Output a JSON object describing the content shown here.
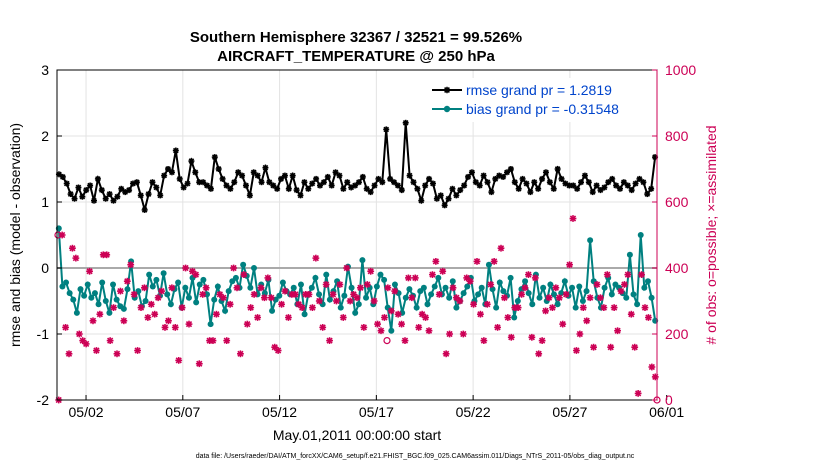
{
  "chart_data": {
    "type": "line",
    "title": "Southern Hemisphere 32367 / 32521 = 99.526%",
    "subtitle": "AIRCRAFT_TEMPERATURE @ 250 hPa",
    "xlabel": "May.01,2011 00:00:00 start",
    "ylabel": "rmse and bias (model - observation)",
    "ylabel_right": "# of obs: o=possible; ×=assimilated",
    "footer": "data file: /Users/raeder/DAI/ATM_forcXX/CAM6_setup/f.e21.FHIST_BGC.f09_025.CAM6assim.011/Diags_NTrS_2011-05/obs_diag_output.nc",
    "xlim": [
      0.5,
      31.5
    ],
    "ylim": [
      -2,
      3
    ],
    "ylim_right": [
      0,
      1000
    ],
    "x_ticks": [
      2,
      7,
      12,
      17,
      22,
      27,
      32
    ],
    "x_tick_labels": [
      "05/02",
      "05/07",
      "05/12",
      "05/17",
      "05/22",
      "05/27",
      "06/01"
    ],
    "y_ticks": [
      -2,
      -1,
      0,
      1,
      2,
      3
    ],
    "y_ticks_right": [
      0,
      200,
      400,
      600,
      800,
      1000
    ],
    "grid": true,
    "legend_position": "top-right",
    "series": [
      {
        "name": "rmse grand pr = 1.2819",
        "color": "#000000",
        "marker": "asterisk",
        "axis": "left",
        "values": [
          1.42,
          1.38,
          1.28,
          1.12,
          1.05,
          1.22,
          1.08,
          1.18,
          1.25,
          1.02,
          1.35,
          1.18,
          1.05,
          1.12,
          1.02,
          1.08,
          1.2,
          1.15,
          1.18,
          1.28,
          1.3,
          1.1,
          0.88,
          1.12,
          1.3,
          1.22,
          1.1,
          1.4,
          1.5,
          1.45,
          1.78,
          1.35,
          1.22,
          1.28,
          1.62,
          1.45,
          1.3,
          1.3,
          1.25,
          1.2,
          1.68,
          1.5,
          1.35,
          1.25,
          1.2,
          1.3,
          1.45,
          1.4,
          1.25,
          1.1,
          1.45,
          1.4,
          1.3,
          1.52,
          1.3,
          1.25,
          1.2,
          1.35,
          1.4,
          1.2,
          1.4,
          1.18,
          1.1,
          1.3,
          1.2,
          1.28,
          1.35,
          1.25,
          1.3,
          1.38,
          1.25,
          1.45,
          1.4,
          1.2,
          1.3,
          1.22,
          1.25,
          1.3,
          1.38,
          1.2,
          1.15,
          1.25,
          1.35,
          1.3,
          2.1,
          1.35,
          1.3,
          1.25,
          1.18,
          2.2,
          1.4,
          1.3,
          1.2,
          1.02,
          1.25,
          1.35,
          1.28,
          1.05,
          1.1,
          0.95,
          1.05,
          1.2,
          1.1,
          1.18,
          1.25,
          1.38,
          1.45,
          1.3,
          1.25,
          1.4,
          1.3,
          1.15,
          1.35,
          1.4,
          1.38,
          1.45,
          1.5,
          1.3,
          1.2,
          1.35,
          1.28,
          1.15,
          1.3,
          1.2,
          1.35,
          1.45,
          1.3,
          1.2,
          1.5,
          1.35,
          1.28,
          1.25,
          1.25,
          1.2,
          1.3,
          1.4,
          1.3,
          1.15,
          1.25,
          1.18,
          1.22,
          1.3,
          1.35,
          1.25,
          1.2,
          1.3,
          1.25,
          1.18,
          1.28,
          1.35,
          1.3,
          1.12,
          1.2,
          1.68
        ]
      },
      {
        "name": "bias grand pr = -0.31548",
        "color": "#008080",
        "marker": "dot",
        "axis": "left",
        "values": [
          0.6,
          -0.28,
          -0.22,
          -0.38,
          -0.48,
          -0.68,
          -0.32,
          -0.42,
          -0.25,
          -0.45,
          -0.38,
          -0.55,
          -0.22,
          -0.5,
          -0.68,
          -0.25,
          -0.48,
          -0.58,
          -0.62,
          -0.32,
          0.1,
          -0.45,
          -0.35,
          -0.58,
          -0.5,
          -0.1,
          -0.28,
          -0.18,
          -0.42,
          -0.08,
          -0.4,
          -0.55,
          -0.32,
          -0.22,
          -0.6,
          -0.3,
          -0.45,
          -0.15,
          -0.52,
          -0.25,
          -0.18,
          -0.4,
          -0.85,
          -0.48,
          -0.28,
          -0.5,
          -0.65,
          -0.35,
          -0.2,
          -0.15,
          -0.3,
          0.05,
          -0.12,
          -0.3,
          0.0,
          -0.4,
          -0.25,
          -0.38,
          -0.18,
          -0.65,
          -0.48,
          -0.42,
          -0.22,
          -0.35,
          -0.4,
          -0.3,
          -0.55,
          -0.25,
          -0.7,
          -0.4,
          -0.3,
          -0.15,
          -0.4,
          -0.55,
          -0.1,
          -0.48,
          -0.35,
          -0.2,
          -0.6,
          -0.42,
          0.02,
          -0.3,
          -0.68,
          -0.55,
          0.12,
          -0.45,
          -0.3,
          -0.55,
          -0.28,
          -0.1,
          -0.18,
          -0.6,
          -0.95,
          -0.25,
          -0.38,
          -0.68,
          -0.45,
          -0.32,
          -0.42,
          -0.6,
          -0.35,
          -0.3,
          -0.55,
          -0.4,
          -0.28,
          -0.15,
          -0.4,
          -0.3,
          -0.45,
          -0.2,
          -0.6,
          -0.5,
          -0.38,
          -0.28,
          -0.15,
          -0.5,
          -0.4,
          -0.3,
          -0.55,
          0.05,
          -0.32,
          -0.6,
          -0.22,
          -0.35,
          -0.42,
          -0.15,
          -0.75,
          -0.5,
          -0.32,
          -0.2,
          -0.38,
          -0.55,
          -0.1,
          -0.45,
          -0.3,
          -0.5,
          -0.25,
          -0.4,
          -0.55,
          -0.38,
          -0.2,
          -0.42,
          -0.3,
          -0.6,
          -0.28,
          -0.5,
          -0.35,
          0.42,
          -0.2,
          -0.45,
          -0.6,
          -0.3,
          -0.15,
          -0.4,
          -0.25,
          -0.3,
          -0.38,
          -0.45,
          0.2,
          -0.4,
          -0.55,
          0.5,
          -0.3,
          -0.2,
          -0.45,
          -0.8
        ]
      }
    ],
    "obs_assimilated": {
      "name": "# assimilated",
      "color": "#cc0055",
      "marker": "x",
      "axis": "right",
      "values": [
        0,
        500,
        220,
        140,
        460,
        430,
        200,
        180,
        170,
        390,
        240,
        150,
        260,
        440,
        440,
        180,
        280,
        140,
        330,
        240,
        360,
        410,
        320,
        150,
        280,
        340,
        250,
        290,
        260,
        310,
        330,
        220,
        240,
        340,
        220,
        120,
        280,
        400,
        230,
        390,
        380,
        110,
        320,
        340,
        180,
        180,
        260,
        320,
        310,
        180,
        290,
        400,
        340,
        140,
        380,
        230,
        280,
        320,
        250,
        340,
        310,
        370,
        310,
        160,
        150,
        290,
        330,
        250,
        320,
        320,
        290,
        280,
        320,
        320,
        280,
        430,
        300,
        220,
        350,
        180,
        320,
        300,
        350,
        250,
        400,
        300,
        320,
        310,
        340,
        220,
        350,
        390,
        300,
        230,
        210,
        250,
        340,
        270,
        330,
        260,
        230,
        180,
        370,
        310,
        370,
        220,
        260,
        250,
        210,
        380,
        420,
        320,
        390,
        140,
        200,
        340,
        310,
        300,
        200,
        370,
        360,
        290,
        420,
        260,
        180,
        290,
        350,
        420,
        220,
        460,
        310,
        250,
        190,
        280,
        280,
        320,
        340,
        380,
        190,
        370,
        140,
        180,
        270,
        310,
        280,
        340,
        310,
        230,
        320,
        410,
        550,
        150,
        200,
        280,
        240,
        310,
        160,
        350,
        310,
        280,
        380,
        160,
        280,
        210,
        330,
        350,
        380,
        260,
        160,
        20,
        380,
        280,
        250,
        100,
        70
      ]
    },
    "obs_possible": {
      "name": "# possible",
      "color": "#cc0055",
      "marker": "o",
      "axis": "right",
      "note": "nearly coincident with assimilated counts; visible circles mark only the few differences",
      "values": [
        500,
        180,
        0
      ]
    }
  }
}
